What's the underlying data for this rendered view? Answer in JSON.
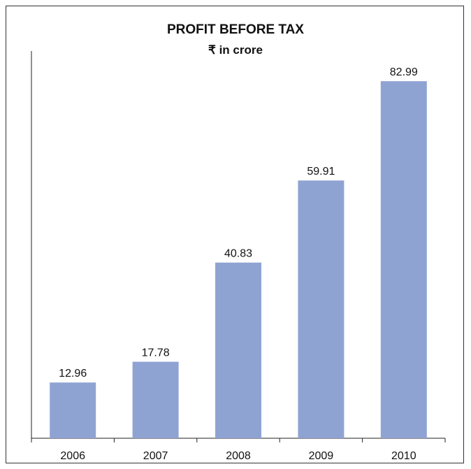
{
  "chart_data": {
    "type": "bar",
    "title": "PROFIT BEFORE TAX",
    "subtitle": "₹ in crore",
    "categories": [
      "2006",
      "2007",
      "2008",
      "2009",
      "2010"
    ],
    "values": [
      12.96,
      17.78,
      40.83,
      59.91,
      82.99
    ],
    "data_labels": [
      "12.96",
      "17.78",
      "40.83",
      "59.91",
      "82.99"
    ],
    "xlabel": "",
    "ylabel": "",
    "ylim": [
      0,
      90
    ],
    "grid": false,
    "legend": "none",
    "bar_color": "#8fa3d3"
  }
}
